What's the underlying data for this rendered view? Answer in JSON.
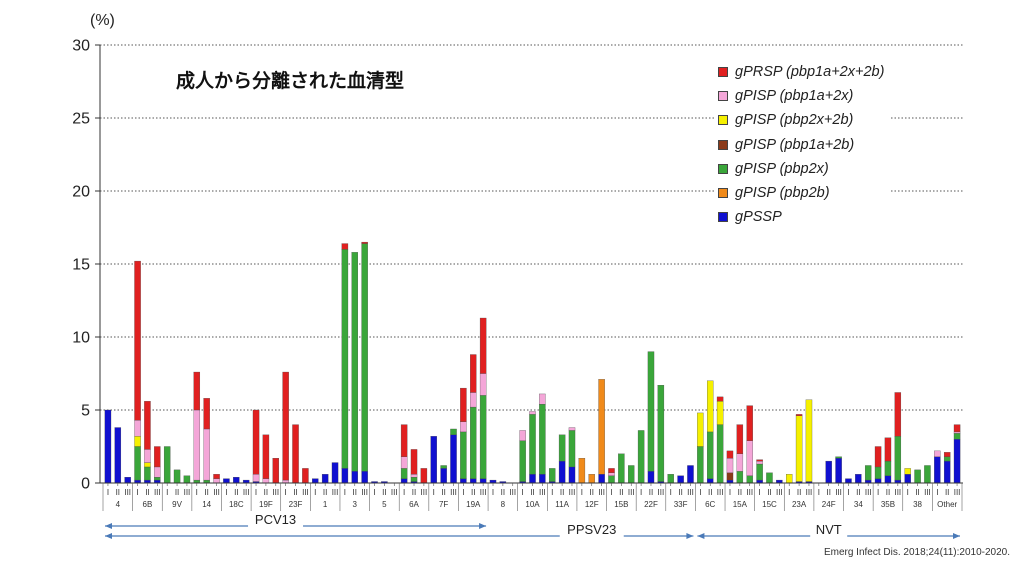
{
  "title": "成人から分離された血清型",
  "citation": "Emerg Infect Dis. 2018;24(11):2010-2020.",
  "colors": {
    "gPRSP": "#e02020",
    "gPISP_1a2x": "#f4a6d8",
    "gPISP_2x2b": "#f5f000",
    "gPISP_1a2b": "#8b3a1a",
    "gPISP_2x": "#3aa63a",
    "gPISP_2b": "#f08a1a",
    "gPSSP": "#1010d0"
  },
  "chart_data": {
    "type": "bar",
    "stacked": true,
    "y_unit_label": "(%)",
    "ylim": [
      0,
      30
    ],
    "yticks": [
      "0",
      "5",
      "10",
      "15",
      "20",
      "25",
      "30"
    ],
    "grid": "dotted horizontal",
    "legend_position": "top-right",
    "legend": [
      {
        "key": "gPRSP",
        "label": "gPRSP (pbp1a+2x+2b)"
      },
      {
        "key": "gPISP_1a2x",
        "label": "gPISP (pbp1a+2x)"
      },
      {
        "key": "gPISP_2x2b",
        "label": "gPISP (pbp2x+2b)"
      },
      {
        "key": "gPISP_1a2b",
        "label": "gPISP (pbp1a+2b)"
      },
      {
        "key": "gPISP_2x",
        "label": "gPISP (pbp2x)"
      },
      {
        "key": "gPISP_2b",
        "label": "gPISP (pbp2b)"
      },
      {
        "key": "gPSSP",
        "label": "gPSSP"
      }
    ],
    "period_labels": [
      "I",
      "II",
      "III"
    ],
    "series_order": [
      "gPSSP",
      "gPISP_2b",
      "gPISP_2x",
      "gPISP_1a2b",
      "gPISP_2x2b",
      "gPISP_1a2x",
      "gPRSP"
    ],
    "groups": [
      {
        "name": "4",
        "bars": [
          {
            "gPSSP": 5.0
          },
          {
            "gPSSP": 3.8
          },
          {
            "gPSSP": 0.4
          }
        ]
      },
      {
        "name": "6B",
        "bars": [
          {
            "gPSSP": 0.2,
            "gPISP_2x": 2.3,
            "gPISP_2x2b": 0.7,
            "gPISP_1a2x": 1.1,
            "gPRSP": 10.9
          },
          {
            "gPSSP": 0.2,
            "gPISP_2x": 0.9,
            "gPISP_2x2b": 0.3,
            "gPISP_1a2x": 0.9,
            "gPRSP": 3.3
          },
          {
            "gPSSP": 0.2,
            "gPISP_2x": 0.2,
            "gPISP_1a2x": 0.7,
            "gPRSP": 1.4
          }
        ]
      },
      {
        "name": "9V",
        "bars": [
          {
            "gPISP_2x": 2.5
          },
          {
            "gPISP_2x": 0.9
          },
          {
            "gPISP_2x": 0.5
          }
        ]
      },
      {
        "name": "14",
        "bars": [
          {
            "gPISP_2x": 0.2,
            "gPISP_1a2x": 4.8,
            "gPRSP": 2.6
          },
          {
            "gPISP_2x": 0.2,
            "gPISP_1a2x": 3.5,
            "gPRSP": 2.1
          },
          {
            "gPISP_1a2x": 0.3,
            "gPRSP": 0.3
          }
        ]
      },
      {
        "name": "18C",
        "bars": [
          {
            "gPSSP": 0.3
          },
          {
            "gPSSP": 0.4
          },
          {
            "gPSSP": 0.2
          }
        ]
      },
      {
        "name": "19F",
        "bars": [
          {
            "gPSSP": 0.1,
            "gPISP_1a2x": 0.5,
            "gPRSP": 4.4
          },
          {
            "gPISP_1a2x": 0.3,
            "gPRSP": 3.0
          },
          {
            "gPRSP": 1.7
          }
        ]
      },
      {
        "name": "23F",
        "bars": [
          {
            "gPISP_1a2x": 0.2,
            "gPRSP": 7.4
          },
          {
            "gPRSP": 4.0
          },
          {
            "gPRSP": 1.0
          }
        ]
      },
      {
        "name": "1",
        "bars": [
          {
            "gPSSP": 0.3
          },
          {
            "gPSSP": 0.6
          },
          {
            "gPSSP": 1.4
          }
        ]
      },
      {
        "name": "3",
        "bars": [
          {
            "gPSSP": 1.0,
            "gPISP_2x": 15.0,
            "gPRSP": 0.4
          },
          {
            "gPSSP": 0.8,
            "gPISP_2x": 15.0
          },
          {
            "gPSSP": 0.8,
            "gPISP_2x": 15.6,
            "gPRSP": 0.1
          }
        ]
      },
      {
        "name": "5",
        "bars": [
          {
            "gPSSP": 0.1
          },
          {
            "gPSSP": 0.1
          },
          {}
        ]
      },
      {
        "name": "6A",
        "bars": [
          {
            "gPSSP": 0.3,
            "gPISP_2x": 0.7,
            "gPISP_1a2x": 0.8,
            "gPRSP": 2.2
          },
          {
            "gPSSP": 0.1,
            "gPISP_2x": 0.3,
            "gPISP_1a2x": 0.2,
            "gPRSP": 1.7
          },
          {
            "gPRSP": 1.0
          }
        ]
      },
      {
        "name": "7F",
        "bars": [
          {
            "gPSSP": 3.2
          },
          {
            "gPSSP": 1.0,
            "gPISP_2x": 0.2
          },
          {
            "gPSSP": 3.3,
            "gPISP_2x": 0.4
          }
        ]
      },
      {
        "name": "19A",
        "bars": [
          {
            "gPSSP": 0.3,
            "gPISP_2x": 3.2,
            "gPISP_1a2x": 0.7,
            "gPRSP": 2.3
          },
          {
            "gPSSP": 0.3,
            "gPISP_2x": 4.9,
            "gPISP_1a2x": 1.0,
            "gPRSP": 2.6
          },
          {
            "gPSSP": 0.3,
            "gPISP_2x": 5.7,
            "gPISP_1a2x": 1.5,
            "gPRSP": 3.8
          }
        ]
      },
      {
        "name": "8",
        "bars": [
          {
            "gPSSP": 0.2
          },
          {
            "gPSSP": 0.1
          },
          {}
        ]
      },
      {
        "name": "10A",
        "bars": [
          {
            "gPSSP": 0.1,
            "gPISP_2x": 2.8,
            "gPISP_1a2x": 0.7
          },
          {
            "gPSSP": 0.6,
            "gPISP_2x": 4.1,
            "gPISP_1a2x": 0.2
          },
          {
            "gPSSP": 0.6,
            "gPISP_2x": 4.8,
            "gPISP_1a2x": 0.7
          }
        ]
      },
      {
        "name": "11A",
        "bars": [
          {
            "gPSSP": 0.1,
            "gPISP_2x": 0.9
          },
          {
            "gPSSP": 1.5,
            "gPISP_2x": 1.8
          },
          {
            "gPSSP": 1.1,
            "gPISP_2x": 2.5,
            "gPISP_1a2x": 0.2
          }
        ]
      },
      {
        "name": "12F",
        "bars": [
          {
            "gPISP_2b": 1.7
          },
          {
            "gPISP_2b": 0.6
          },
          {
            "gPSSP": 0.6,
            "gPISP_2b": 6.5
          }
        ]
      },
      {
        "name": "15B",
        "bars": [
          {
            "gPISP_2x": 0.5,
            "gPISP_1a2x": 0.2,
            "gPRSP": 0.3
          },
          {
            "gPISP_2x": 2.0
          },
          {
            "gPISP_2x": 1.2
          }
        ]
      },
      {
        "name": "22F",
        "bars": [
          {
            "gPISP_2x": 3.6
          },
          {
            "gPSSP": 0.8,
            "gPISP_2x": 8.2
          },
          {
            "gPSSP": 0.1,
            "gPISP_2x": 6.6
          }
        ]
      },
      {
        "name": "33F",
        "bars": [
          {
            "gPISP_2x": 0.6
          },
          {
            "gPSSP": 0.5
          },
          {
            "gPSSP": 1.2
          }
        ]
      },
      {
        "name": "6C",
        "bars": [
          {
            "gPISP_2x": 2.5,
            "gPISP_2x2b": 2.3
          },
          {
            "gPSSP": 0.3,
            "gPISP_2x": 3.2,
            "gPISP_2x2b": 3.5
          },
          {
            "gPISP_2x": 4.0,
            "gPISP_2x2b": 1.6,
            "gPRSP": 0.3
          }
        ]
      },
      {
        "name": "15A",
        "bars": [
          {
            "gPSSP": 0.2,
            "gPISP_1a2b": 0.5,
            "gPISP_1a2x": 1.0,
            "gPRSP": 0.5
          },
          {
            "gPISP_2x": 0.8,
            "gPISP_1a2x": 1.2,
            "gPRSP": 2.0
          },
          {
            "gPISP_2x": 0.5,
            "gPISP_1a2x": 2.4,
            "gPRSP": 2.4
          }
        ]
      },
      {
        "name": "15C",
        "bars": [
          {
            "gPSSP": 0.2,
            "gPISP_2x": 1.1,
            "gPISP_1a2x": 0.2,
            "gPRSP": 0.1
          },
          {
            "gPISP_2x": 0.7
          },
          {
            "gPSSP": 0.2
          }
        ]
      },
      {
        "name": "23A",
        "bars": [
          {
            "gPISP_2x2b": 0.6
          },
          {
            "gPSSP": 0.1,
            "gPISP_2x2b": 4.5,
            "gPRSP": 0.1
          },
          {
            "gPSSP": 0.1,
            "gPISP_2x2b": 5.6
          }
        ]
      },
      {
        "name": "24F",
        "bars": [
          {},
          {
            "gPSSP": 1.5
          },
          {
            "gPSSP": 1.7,
            "gPISP_2x": 0.1
          }
        ]
      },
      {
        "name": "34",
        "bars": [
          {
            "gPSSP": 0.3
          },
          {
            "gPSSP": 0.6
          },
          {
            "gPSSP": 0.2,
            "gPISP_2x": 1.0
          }
        ]
      },
      {
        "name": "35B",
        "bars": [
          {
            "gPSSP": 0.3,
            "gPISP_2x": 0.8,
            "gPRSP": 1.4
          },
          {
            "gPSSP": 0.5,
            "gPISP_2x": 1.0,
            "gPRSP": 1.6
          },
          {
            "gPSSP": 0.2,
            "gPISP_2x": 3.0,
            "gPRSP": 3.0
          }
        ]
      },
      {
        "name": "38",
        "bars": [
          {
            "gPSSP": 0.6,
            "gPISP_2x2b": 0.4
          },
          {
            "gPISP_2x": 0.9
          },
          {
            "gPISP_2x": 1.2
          }
        ]
      },
      {
        "name": "Other",
        "bars": [
          {
            "gPSSP": 1.8,
            "gPISP_1a2x": 0.4
          },
          {
            "gPSSP": 1.5,
            "gPISP_2x": 0.3,
            "gPRSP": 0.3
          },
          {
            "gPSSP": 3.0,
            "gPISP_2x": 0.4,
            "gPISP_1a2x": 0.1,
            "gPRSP": 0.5
          }
        ]
      }
    ],
    "ranges": [
      {
        "label": "PCV13",
        "from": "4",
        "to": "19A"
      },
      {
        "label": "PPSV23",
        "from": "4",
        "to": "33F"
      },
      {
        "label": "NVT",
        "from": "6C",
        "to": "Other"
      }
    ]
  }
}
